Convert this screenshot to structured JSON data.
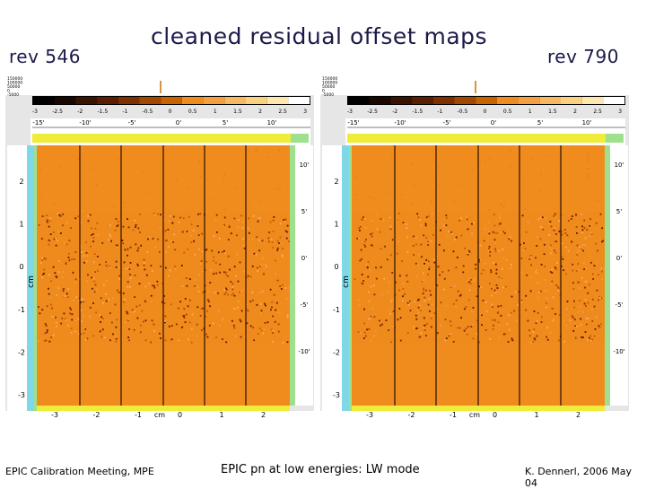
{
  "slide": {
    "title": "cleaned residual offset maps",
    "left_label": "rev 546",
    "right_label": "rev 790",
    "footer_left": "EPIC Calibration Meeting, MPE",
    "footer_center": "EPIC pn at low energies: LW mode",
    "footer_right": "K. Dennerl, 2006 May 04"
  },
  "colors": {
    "heading": "#1a1a4a",
    "map_background": "#f08c1e",
    "scale_bar_cyan": "#7fd8e8",
    "scale_bar_yellow": "#f0ec3a",
    "scale_bar_green": "#9ee08e",
    "panel_background": "#e6e6e6"
  },
  "panels": [
    {
      "name": "rev 546",
      "histogram_counts": [
        "150000",
        "100000",
        "50000",
        "0",
        "-5000"
      ],
      "colorbar_ticks": [
        "-3",
        "-2.5",
        "-2",
        "-1.5",
        "-1",
        "-0.5",
        "0",
        "0.5",
        "1",
        "1.5",
        "2",
        "2.5",
        "3"
      ],
      "top_arcmin_ticks": [
        "-15'",
        "-10'",
        "-5'",
        "0'",
        "5'",
        "10'"
      ],
      "left_cm_ticks": [
        "2",
        "1",
        "0",
        "-1",
        "-2",
        "-3"
      ],
      "left_axis_label": "cm",
      "right_arcmin_ticks": [
        "10'",
        "5'",
        "0'",
        "-5'",
        "-10'"
      ],
      "bottom_cm_ticks": [
        "-3",
        "-2",
        "-1",
        "0",
        "1",
        "2"
      ],
      "bottom_axis_label": "cm"
    },
    {
      "name": "rev 790",
      "histogram_counts": [
        "150000",
        "100000",
        "50000",
        "0",
        "-5000"
      ],
      "colorbar_ticks": [
        "-3",
        "-2.5",
        "-2",
        "-1.5",
        "-1",
        "-0.5",
        "0",
        "0.5",
        "1",
        "1.5",
        "2",
        "2.5",
        "3"
      ],
      "top_arcmin_ticks": [
        "-15'",
        "-10'",
        "-5'",
        "0'",
        "5'",
        "10'"
      ],
      "left_cm_ticks": [
        "2",
        "1",
        "0",
        "-1",
        "-2",
        "-3"
      ],
      "left_axis_label": "cm",
      "right_arcmin_ticks": [
        "10'",
        "5'",
        "0'",
        "-5'",
        "-10'"
      ],
      "bottom_cm_ticks": [
        "-3",
        "-2",
        "-1",
        "0",
        "1",
        "2"
      ],
      "bottom_axis_label": "cm"
    }
  ]
}
